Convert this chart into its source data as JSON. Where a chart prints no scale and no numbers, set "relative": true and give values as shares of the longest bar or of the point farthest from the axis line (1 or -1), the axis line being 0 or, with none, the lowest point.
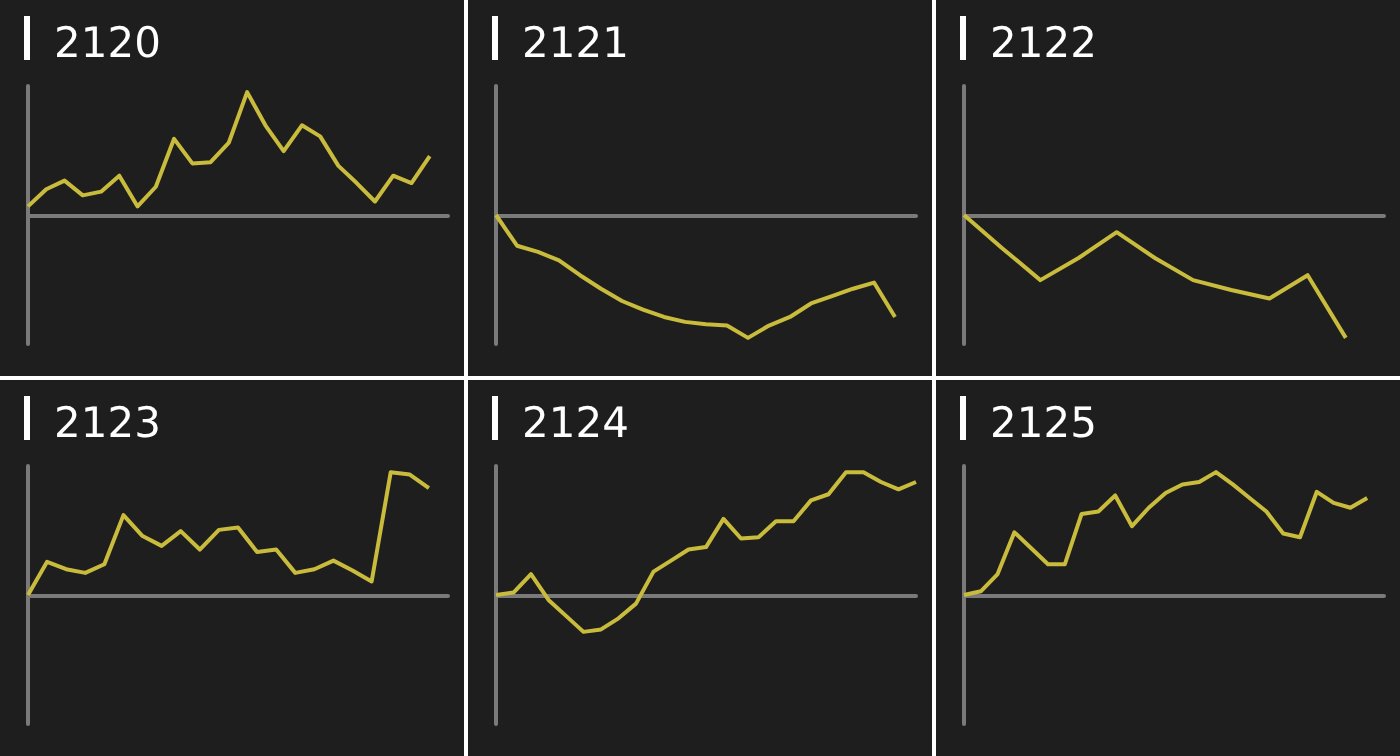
{
  "chart_data": [
    {
      "type": "line",
      "title": "2120",
      "relative": true,
      "marker": "none",
      "categories": [
        null,
        null,
        null,
        null,
        null,
        null,
        null,
        null,
        null,
        null,
        null,
        null,
        null,
        null,
        null,
        null,
        null,
        null,
        null,
        null,
        null,
        null,
        null,
        null
      ],
      "series": [
        {
          "color": "#c9bb3c",
          "values": [
            0.07,
            0.21,
            0.28,
            0.16,
            0.19,
            0.32,
            0.07,
            0.23,
            0.62,
            0.42,
            0.43,
            0.59,
            1,
            0.73,
            0.52,
            0.73,
            0.64,
            0.4,
            0.26,
            0.11,
            0.32,
            0.26,
            0.48,
            null
          ]
        }
      ]
    },
    {
      "type": "line",
      "title": "2121",
      "relative": true,
      "marker": "none",
      "categories": [
        null,
        null,
        null,
        null,
        null,
        null,
        null,
        null,
        null,
        null,
        null,
        null,
        null,
        null,
        null,
        null,
        null,
        null,
        null,
        null,
        null
      ],
      "series": [
        {
          "color": "#c9bb3c",
          "values": [
            0,
            -0.25,
            -0.3,
            -0.37,
            -0.49,
            -0.6,
            -0.7,
            -0.77,
            -0.83,
            -0.87,
            -0.89,
            -0.9,
            -1,
            -0.9,
            -0.83,
            -0.72,
            -0.66,
            -0.6,
            -0.55,
            -0.83,
            null
          ]
        }
      ]
    },
    {
      "type": "line",
      "title": "2122",
      "relative": true,
      "marker": "none",
      "categories": [
        null,
        null,
        null,
        null,
        null,
        null,
        null,
        null,
        null,
        null,
        null,
        null
      ],
      "series": [
        {
          "color": "#c9bb3c",
          "values": [
            0,
            -0.27,
            -0.53,
            -0.35,
            -0.14,
            -0.35,
            -0.53,
            -0.61,
            -0.68,
            -0.49,
            -1,
            null
          ]
        }
      ]
    },
    {
      "type": "line",
      "title": "2123",
      "relative": true,
      "marker": "none",
      "categories": [
        null,
        null,
        null,
        null,
        null,
        null,
        null,
        null,
        null,
        null,
        null,
        null,
        null,
        null,
        null,
        null,
        null,
        null,
        null,
        null,
        null,
        null,
        null
      ],
      "series": [
        {
          "color": "#c9bb3c",
          "values": [
            0,
            0.27,
            0.21,
            0.18,
            0.25,
            0.65,
            0.48,
            0.4,
            0.52,
            0.37,
            0.53,
            0.55,
            0.35,
            0.37,
            0.18,
            0.21,
            0.28,
            0.2,
            0.11,
            1,
            0.98,
            0.87,
            null
          ]
        }
      ]
    },
    {
      "type": "line",
      "title": "2124",
      "relative": true,
      "marker": "none",
      "categories": [
        null,
        null,
        null,
        null,
        null,
        null,
        null,
        null,
        null,
        null,
        null,
        null,
        null,
        null,
        null,
        null,
        null,
        null,
        null,
        null,
        null,
        null,
        null,
        null,
        null
      ],
      "series": [
        {
          "color": "#c9bb3c",
          "values": [
            0,
            0.02,
            0.17,
            -0.04,
            -0.17,
            -0.3,
            -0.28,
            -0.19,
            -0.07,
            0.19,
            0.28,
            0.37,
            0.39,
            0.62,
            0.46,
            0.47,
            0.6,
            0.6,
            0.77,
            0.82,
            1,
            1,
            0.92,
            0.86,
            0.92
          ]
        }
      ]
    },
    {
      "type": "line",
      "title": "2125",
      "relative": true,
      "marker": "none",
      "categories": [
        null,
        null,
        null,
        null,
        null,
        null,
        null,
        null,
        null,
        null,
        null,
        null,
        null,
        null,
        null,
        null,
        null,
        null,
        null,
        null,
        null,
        null,
        null,
        null,
        null,
        null
      ],
      "series": [
        {
          "color": "#c9bb3c",
          "values": [
            0,
            0.03,
            0.17,
            0.51,
            0.38,
            0.25,
            0.25,
            0.66,
            0.68,
            0.81,
            0.56,
            0.71,
            0.83,
            0.9,
            0.92,
            1,
            0.9,
            0.79,
            0.68,
            0.5,
            0.47,
            0.84,
            0.75,
            0.71,
            0.79,
            null
          ]
        }
      ]
    }
  ]
}
